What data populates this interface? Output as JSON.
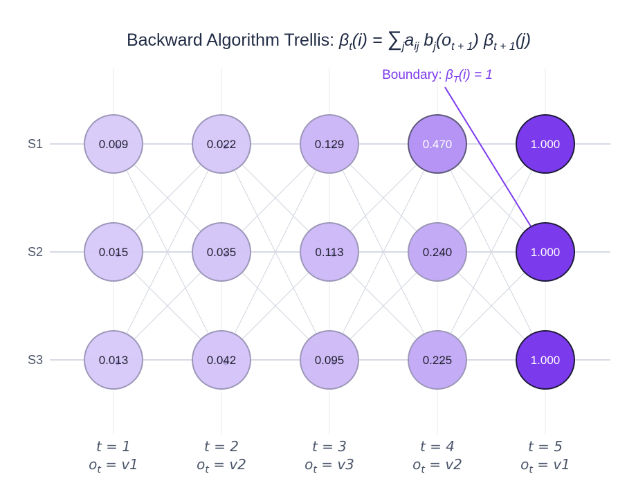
{
  "title": {
    "prefix": "Backward Algorithm Trellis: ",
    "formula_parts": [
      "β",
      "t",
      "(i) = ",
      "∑",
      "j",
      "a",
      "ij",
      " b",
      "j",
      "(o",
      "t + 1",
      ") β",
      "t + 1",
      "(j)"
    ]
  },
  "annotation": {
    "text_prefix": "Boundary: ",
    "math": [
      "β",
      "T",
      "(i) = 1"
    ]
  },
  "states": [
    "S1",
    "S2",
    "S3"
  ],
  "time_labels": [
    {
      "t": "t = 1",
      "o": "v1"
    },
    {
      "t": "t = 2",
      "o": "v2"
    },
    {
      "t": "t = 3",
      "o": "v3"
    },
    {
      "t": "t = 4",
      "o": "v2"
    },
    {
      "t": "t = 5",
      "o": "v1"
    }
  ],
  "obs_prefix": "o",
  "obs_sub": "t",
  "values": [
    [
      "0.009",
      "0.022",
      "0.129",
      "0.470",
      "1.000"
    ],
    [
      "0.015",
      "0.035",
      "0.113",
      "0.240",
      "1.000"
    ],
    [
      "0.013",
      "0.042",
      "0.095",
      "0.225",
      "1.000"
    ]
  ],
  "colors": {
    "accent": "#7c3aed",
    "node_light": "#d9ccf9",
    "node_dark": "#7c3aed",
    "title_text": "#1f2a44"
  }
}
